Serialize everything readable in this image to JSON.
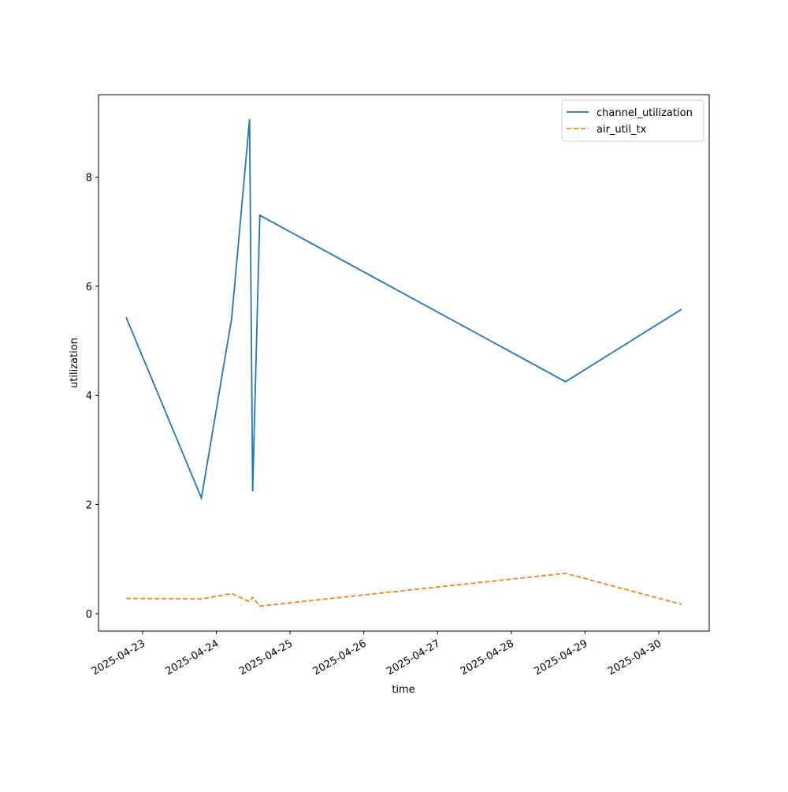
{
  "chart_data": {
    "type": "line",
    "x": [
      "2025-04-22T18:40",
      "2025-04-23T19:10",
      "2025-04-24T05:00",
      "2025-04-24T10:50",
      "2025-04-24T11:50",
      "2025-04-24T14:10",
      "2025-04-28T17:40",
      "2025-04-30T07:30"
    ],
    "series": [
      {
        "name": "channel_utilization",
        "color": "#1f77b4",
        "linestyle": "solid",
        "values": [
          5.43,
          2.12,
          5.41,
          9.06,
          2.24,
          7.3,
          4.25,
          5.58
        ]
      },
      {
        "name": "air_util_tx",
        "color": "#ff7f0e",
        "linestyle": "dashed",
        "values": [
          0.28,
          0.27,
          0.37,
          0.22,
          0.3,
          0.14,
          0.74,
          0.17
        ]
      }
    ],
    "xlabel": "time",
    "ylabel": "utilization",
    "xlim": [
      "2025-04-22T09:40",
      "2025-04-30T16:25"
    ],
    "xticks": [
      "2025-04-23",
      "2025-04-24",
      "2025-04-25",
      "2025-04-26",
      "2025-04-27",
      "2025-04-28",
      "2025-04-29",
      "2025-04-30"
    ],
    "ylim": [
      -0.318,
      9.51
    ],
    "yticks": [
      0,
      2,
      4,
      6,
      8
    ],
    "legend": "upper right"
  }
}
